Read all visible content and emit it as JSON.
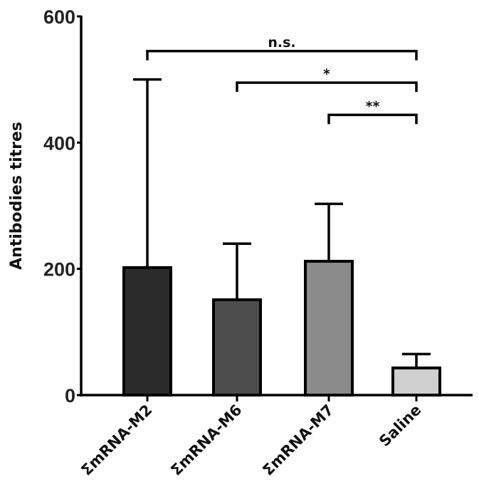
{
  "chart_data": {
    "type": "bar",
    "title": "",
    "xlabel": "",
    "ylabel": "Antibodies titres",
    "ylim": [
      0,
      600
    ],
    "yticks": [
      0,
      200,
      400,
      600
    ],
    "grid": false,
    "legend": null,
    "categories": [
      "ΣmRNA-M2",
      "ΣmRNA-M6",
      "ΣmRNA-M7",
      "Saline"
    ],
    "values": [
      202,
      151,
      212,
      43
    ],
    "error_upper": [
      500,
      240,
      303,
      65
    ],
    "error": [
      298,
      89,
      91,
      22
    ],
    "colors": [
      "#2b2b2b",
      "#4d4d4d",
      "#8a8a8a",
      "#cfcfcf"
    ],
    "annotations": [
      {
        "from": "ΣmRNA-M2",
        "to": "Saline",
        "label": "n.s.",
        "y": 545
      },
      {
        "from": "ΣmRNA-M6",
        "to": "Saline",
        "label": "*",
        "y": 495
      },
      {
        "from": "ΣmRNA-M7",
        "to": "Saline",
        "label": "**",
        "y": 444
      }
    ]
  }
}
